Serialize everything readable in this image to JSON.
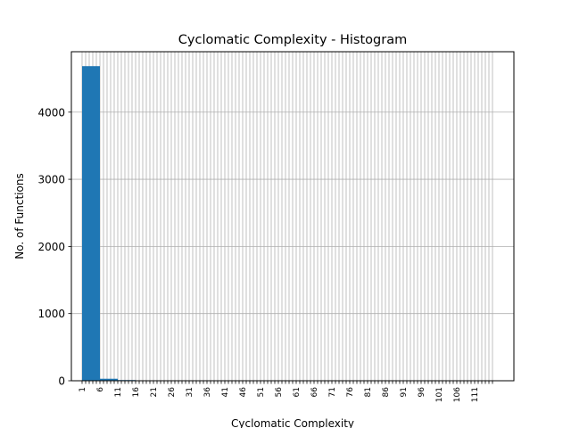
{
  "chart_data": {
    "type": "bar",
    "title": "Cyclomatic Complexity - Histogram",
    "xlabel": "Cyclomatic Complexity",
    "ylabel": "No. of Functions",
    "ylim": [
      0,
      4900
    ],
    "yticks": [
      0,
      1000,
      2000,
      3000,
      4000
    ],
    "xlim": [
      -3,
      121
    ],
    "grid": true,
    "bar_color": "#1f77b4",
    "bins": [
      {
        "label": "1",
        "left": 0,
        "width": 5,
        "value": 4685
      },
      {
        "label": "6",
        "left": 5,
        "width": 5,
        "value": 30
      },
      {
        "label": "11",
        "left": 10,
        "width": 5,
        "value": 10
      },
      {
        "label": "16",
        "left": 15,
        "width": 5,
        "value": 5
      },
      {
        "label": "21",
        "left": 20,
        "width": 5,
        "value": 3
      },
      {
        "label": "26",
        "left": 25,
        "width": 5,
        "value": 2
      },
      {
        "label": "31",
        "left": 30,
        "width": 5,
        "value": 1
      },
      {
        "label": "36",
        "left": 35,
        "width": 5,
        "value": 1
      },
      {
        "label": "41",
        "left": 40,
        "width": 5,
        "value": 1
      },
      {
        "label": "46",
        "left": 45,
        "width": 5,
        "value": 0
      },
      {
        "label": "51",
        "left": 50,
        "width": 5,
        "value": 0
      },
      {
        "label": "56",
        "left": 55,
        "width": 5,
        "value": 0
      },
      {
        "label": "61",
        "left": 60,
        "width": 5,
        "value": 0
      },
      {
        "label": "66",
        "left": 65,
        "width": 5,
        "value": 0
      },
      {
        "label": "71",
        "left": 70,
        "width": 5,
        "value": 0
      },
      {
        "label": "76",
        "left": 75,
        "width": 5,
        "value": 0
      },
      {
        "label": "81",
        "left": 80,
        "width": 5,
        "value": 0
      },
      {
        "label": "86",
        "left": 85,
        "width": 5,
        "value": 0
      },
      {
        "label": "91",
        "left": 90,
        "width": 5,
        "value": 0
      },
      {
        "label": "96",
        "left": 95,
        "width": 5,
        "value": 0
      },
      {
        "label": "101",
        "left": 100,
        "width": 5,
        "value": 0
      },
      {
        "label": "106",
        "left": 105,
        "width": 5,
        "value": 0
      },
      {
        "label": "111",
        "left": 110,
        "width": 5,
        "value": 0
      }
    ]
  }
}
